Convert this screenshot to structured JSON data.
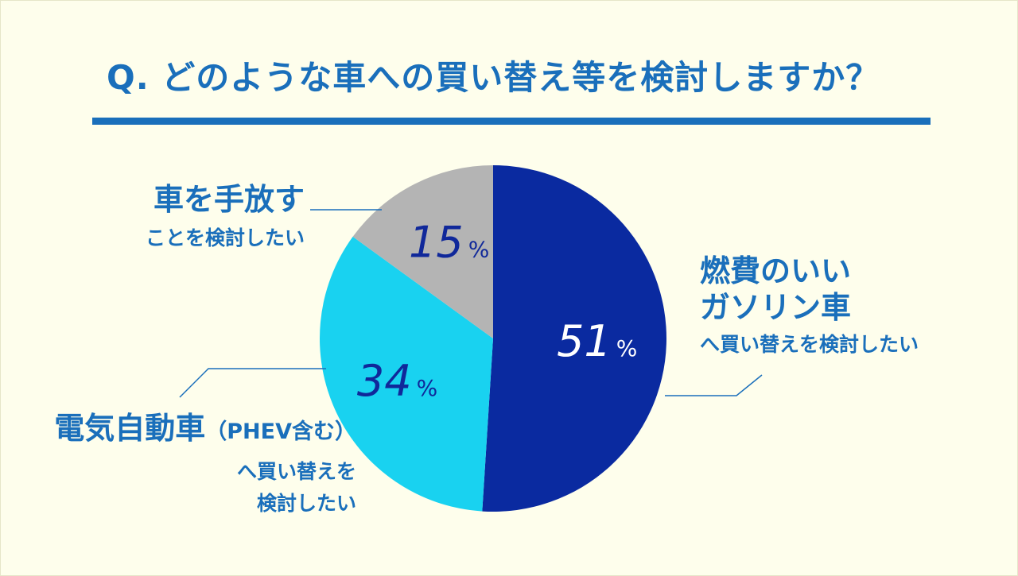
{
  "title": "Q. どのような車への買い替え等を検討しますか？",
  "chart_data": {
    "type": "pie",
    "start": "12 o'clock",
    "direction": "clockwise",
    "slices": [
      {
        "label_lines": [
          "燃費のいい",
          "ガソリン車",
          "へ買い替えを検討したい"
        ],
        "value": 51,
        "display": "51",
        "unit": "%",
        "color": "#0a2aa0",
        "text_color": "#ffffff"
      },
      {
        "label_lines": [
          "電気自動車",
          "（PHEV含む）",
          "へ買い替えを",
          "検討したい"
        ],
        "value": 34,
        "display": "34",
        "unit": "%",
        "color": "#19d2f0",
        "text_color": "#10289a"
      },
      {
        "label_lines": [
          "車を手放す",
          "ことを検討したい"
        ],
        "value": 15,
        "display": "15",
        "unit": "%",
        "color": "#b4b4b4",
        "text_color": "#10289a"
      }
    ]
  },
  "colors": {
    "background": "#fefeec",
    "accent": "#1a6fbb",
    "leader_line": "#1a6fbb"
  }
}
